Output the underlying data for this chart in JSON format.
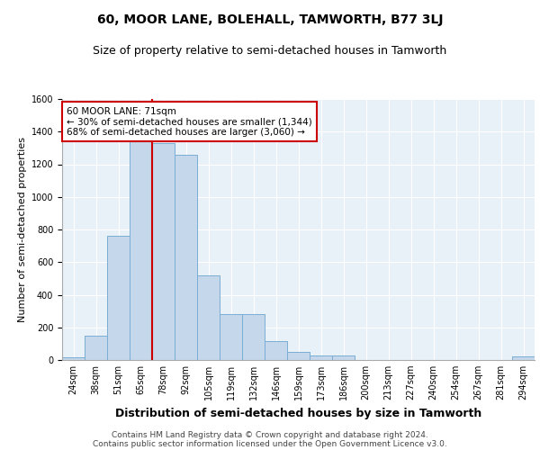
{
  "title": "60, MOOR LANE, BOLEHALL, TAMWORTH, B77 3LJ",
  "subtitle": "Size of property relative to semi-detached houses in Tamworth",
  "xlabel": "Distribution of semi-detached houses by size in Tamworth",
  "ylabel": "Number of semi-detached properties",
  "categories": [
    "24sqm",
    "38sqm",
    "51sqm",
    "65sqm",
    "78sqm",
    "92sqm",
    "105sqm",
    "119sqm",
    "132sqm",
    "146sqm",
    "159sqm",
    "173sqm",
    "186sqm",
    "200sqm",
    "213sqm",
    "227sqm",
    "240sqm",
    "254sqm",
    "267sqm",
    "281sqm",
    "294sqm"
  ],
  "values": [
    15,
    150,
    760,
    1340,
    1330,
    1260,
    520,
    280,
    280,
    115,
    50,
    25,
    25,
    0,
    0,
    0,
    0,
    0,
    0,
    0,
    20
  ],
  "bar_color": "#c5d8eb",
  "bar_edge_color": "#7badd4",
  "vline_color": "#cc0000",
  "annotation_text": "60 MOOR LANE: 71sqm\n← 30% of semi-detached houses are smaller (1,344)\n68% of semi-detached houses are larger (3,060) →",
  "annotation_box_color": "white",
  "annotation_box_edge": "#cc0000",
  "ylim": [
    0,
    1600
  ],
  "yticks": [
    0,
    200,
    400,
    600,
    800,
    1000,
    1200,
    1400,
    1600
  ],
  "bg_color": "#e8f0f8",
  "footer_line1": "Contains HM Land Registry data © Crown copyright and database right 2024.",
  "footer_line2": "Contains public sector information licensed under the Open Government Licence v3.0.",
  "title_fontsize": 10,
  "subtitle_fontsize": 9,
  "ylabel_fontsize": 8,
  "xlabel_fontsize": 9,
  "tick_fontsize": 7,
  "footer_fontsize": 6.5
}
